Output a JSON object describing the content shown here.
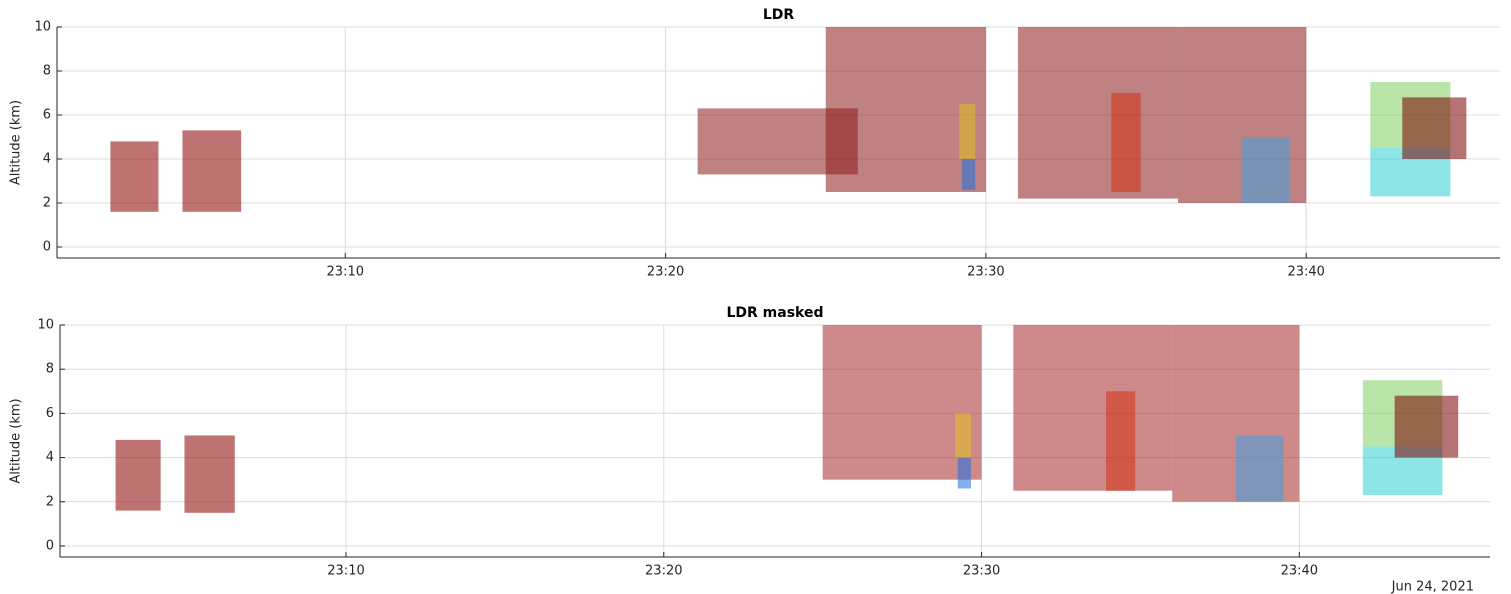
{
  "chart_data": [
    {
      "type": "heatmap",
      "title": "LDR",
      "ylabel": "Altitude (km)",
      "xlim": [
        "23:01:00",
        "23:46:03"
      ],
      "ylim": [
        -0.5,
        10
      ],
      "xticks": [
        "23:10",
        "23:20",
        "23:30",
        "23:40"
      ],
      "yticks": [
        0,
        2,
        4,
        6,
        8,
        10
      ],
      "grid": true,
      "cells": [
        {
          "x": [
            "23:02:40",
            "23:04:10"
          ],
          "y": [
            1.6,
            4.8
          ],
          "color": "#8b0000"
        },
        {
          "x": [
            "23:04:55",
            "23:06:45"
          ],
          "y": [
            1.6,
            5.3
          ],
          "color": "#8b0000"
        },
        {
          "x": [
            "23:21:00",
            "23:26:00"
          ],
          "y": [
            3.3,
            6.3
          ],
          "color": "#8b1a1a"
        },
        {
          "x": [
            "23:25:00",
            "23:30:00"
          ],
          "y": [
            2.5,
            10
          ],
          "color": "#8b1a1a"
        },
        {
          "x": [
            "23:31:00",
            "23:36:00"
          ],
          "y": [
            2.2,
            10
          ],
          "color": "#8b1a1a"
        },
        {
          "x": [
            "23:36:00",
            "23:40:00"
          ],
          "y": [
            2,
            10
          ],
          "color": "#8b1a1a"
        },
        {
          "x": [
            "23:29:15",
            "23:29:40"
          ],
          "y": [
            2.6,
            4
          ],
          "color": "#1e6fe0"
        },
        {
          "x": [
            "23:29:10",
            "23:29:40"
          ],
          "y": [
            4,
            6.5
          ],
          "color": "#e0c020"
        },
        {
          "x": [
            "23:33:55",
            "23:34:50"
          ],
          "y": [
            2.5,
            7
          ],
          "color": "#d03010"
        },
        {
          "x": [
            "23:38:00",
            "23:39:30"
          ],
          "y": [
            2,
            5
          ],
          "color": "#40a0e0"
        },
        {
          "x": [
            "23:42:00",
            "23:44:30"
          ],
          "y": [
            2.3,
            4.5
          ],
          "color": "#30d0d0"
        },
        {
          "x": [
            "23:42:00",
            "23:44:30"
          ],
          "y": [
            4.5,
            7.5
          ],
          "color": "#80d060"
        },
        {
          "x": [
            "23:43:00",
            "23:45:00"
          ],
          "y": [
            4,
            6.8
          ],
          "color": "#7a0000"
        }
      ]
    },
    {
      "type": "heatmap",
      "title": "LDR masked",
      "ylabel": "Altitude (km)",
      "date": "Jun 24, 2021",
      "xlim": [
        "23:01:00",
        "23:46:00"
      ],
      "ylim": [
        -0.5,
        10
      ],
      "xticks": [
        "23:10",
        "23:20",
        "23:30",
        "23:40"
      ],
      "yticks": [
        0,
        2,
        4,
        6,
        8,
        10
      ],
      "grid": true,
      "cells": [
        {
          "x": [
            "23:02:45",
            "23:04:10"
          ],
          "y": [
            1.6,
            4.8
          ],
          "color": "#8b0000"
        },
        {
          "x": [
            "23:04:55",
            "23:06:30"
          ],
          "y": [
            1.5,
            5
          ],
          "color": "#8b0000"
        },
        {
          "x": [
            "23:25:00",
            "23:30:00"
          ],
          "y": [
            3,
            10
          ],
          "color": "#a52a2a"
        },
        {
          "x": [
            "23:31:00",
            "23:36:00"
          ],
          "y": [
            2.5,
            10
          ],
          "color": "#a52a2a"
        },
        {
          "x": [
            "23:36:00",
            "23:40:00"
          ],
          "y": [
            2,
            10
          ],
          "color": "#a52a2a"
        },
        {
          "x": [
            "23:29:15",
            "23:29:40"
          ],
          "y": [
            2.6,
            4
          ],
          "color": "#1e6fe0"
        },
        {
          "x": [
            "23:29:10",
            "23:29:40"
          ],
          "y": [
            4,
            6
          ],
          "color": "#e0c020"
        },
        {
          "x": [
            "23:33:55",
            "23:34:50"
          ],
          "y": [
            2.5,
            7
          ],
          "color": "#d03010"
        },
        {
          "x": [
            "23:38:00",
            "23:39:30"
          ],
          "y": [
            2,
            5
          ],
          "color": "#40a0e0"
        },
        {
          "x": [
            "23:42:00",
            "23:44:30"
          ],
          "y": [
            2.3,
            4.5
          ],
          "color": "#30d0d0"
        },
        {
          "x": [
            "23:42:00",
            "23:44:30"
          ],
          "y": [
            4.5,
            7.5
          ],
          "color": "#80d060"
        },
        {
          "x": [
            "23:43:00",
            "23:45:00"
          ],
          "y": [
            4,
            6.8
          ],
          "color": "#7a0000"
        }
      ]
    }
  ]
}
